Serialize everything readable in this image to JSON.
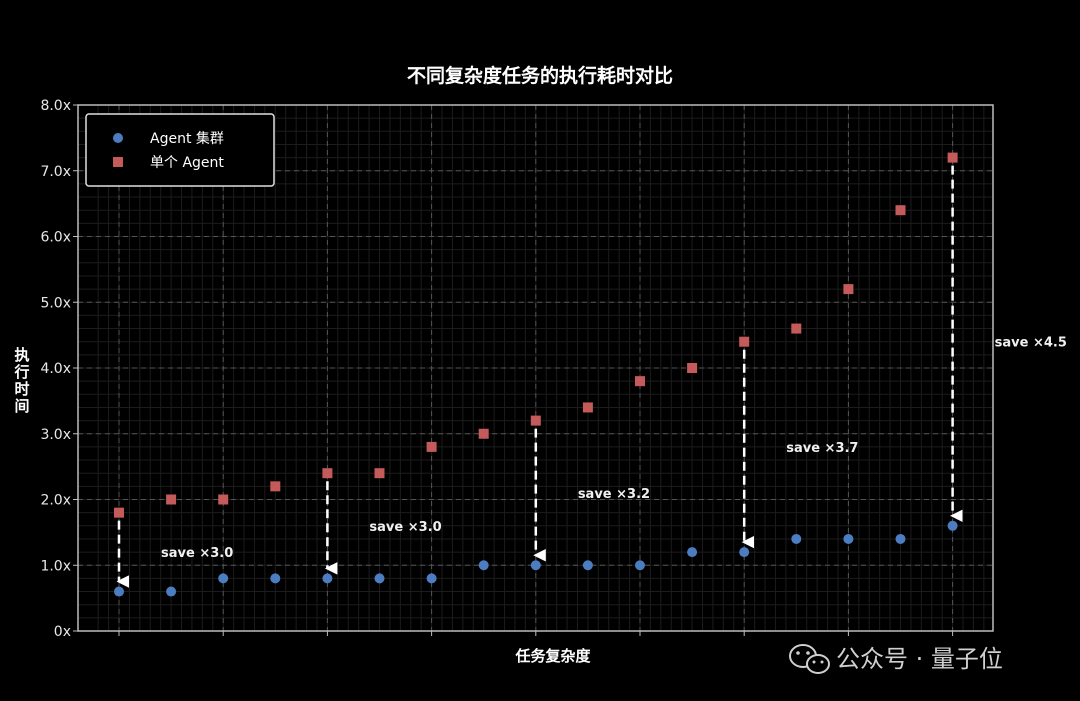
{
  "chart_data": {
    "type": "scatter",
    "title": "不同复杂度任务的执行耗时对比",
    "xlabel": "任务复杂度",
    "ylabel": "执行时间",
    "ylim": [
      0,
      8
    ],
    "yticks": [
      {
        "value": 0,
        "label": "0x"
      },
      {
        "value": 1,
        "label": "1.0x"
      },
      {
        "value": 2,
        "label": "2.0x"
      },
      {
        "value": 3,
        "label": "3.0x"
      },
      {
        "value": 4,
        "label": "4.0x"
      },
      {
        "value": 5,
        "label": "5.0x"
      },
      {
        "value": 6,
        "label": "6.0x"
      },
      {
        "value": 7,
        "label": "7.0x"
      },
      {
        "value": 8,
        "label": "8.0x"
      }
    ],
    "x": [
      1,
      2,
      3,
      4,
      5,
      6,
      7,
      8,
      9,
      10,
      11,
      12,
      13,
      14,
      15,
      16,
      17
    ],
    "grid": true,
    "legend_position": "top-left",
    "series": [
      {
        "name": "Agent 集群",
        "marker": "circle",
        "color": "#4c7dc0",
        "values": [
          0.6,
          0.6,
          0.8,
          0.8,
          0.8,
          0.8,
          0.8,
          1.0,
          1.0,
          1.0,
          1.0,
          1.2,
          1.2,
          1.4,
          1.4,
          1.4,
          1.6
        ]
      },
      {
        "name": "单个 Agent",
        "marker": "square",
        "color": "#c45a5a",
        "values": [
          1.8,
          2.0,
          2.0,
          2.2,
          2.4,
          2.4,
          2.8,
          3.0,
          3.2,
          3.4,
          3.8,
          4.0,
          4.4,
          4.6,
          5.2,
          6.4,
          7.2
        ]
      }
    ],
    "arrows": [
      {
        "x": 1,
        "from": 1.8,
        "to": 0.6
      },
      {
        "x": 5,
        "from": 2.4,
        "to": 0.8
      },
      {
        "x": 9,
        "from": 3.2,
        "to": 1.0
      },
      {
        "x": 13,
        "from": 4.4,
        "to": 1.2
      },
      {
        "x": 17,
        "from": 7.2,
        "to": 1.6
      }
    ],
    "annotations": [
      {
        "text": "save ×3.0",
        "x": 2.5,
        "y": 1.2
      },
      {
        "text": "save ×3.0",
        "x": 6.5,
        "y": 1.6
      },
      {
        "text": "save ×3.2",
        "x": 10.5,
        "y": 2.1
      },
      {
        "text": "save ×3.7",
        "x": 14.5,
        "y": 2.8
      },
      {
        "text": "save ×4.5",
        "x": 18.5,
        "y": 4.4
      }
    ]
  },
  "watermark": {
    "text": "公众号 · 量子位",
    "icon": "wechat-icon"
  }
}
